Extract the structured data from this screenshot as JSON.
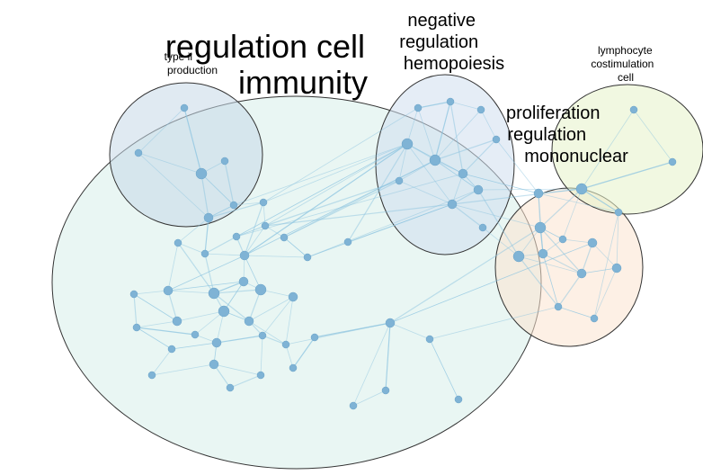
{
  "clusters": [
    {
      "id": "immunity",
      "label_lines": [
        "regulation cell",
        "immunity"
      ],
      "fill": "#d7efe9"
    },
    {
      "id": "type-ii",
      "label_lines": [
        "type ii",
        "production"
      ],
      "fill": "#c7d8e8"
    },
    {
      "id": "hemopoiesis",
      "label_lines": [
        "negative",
        "regulation",
        "hemopoiesis"
      ],
      "fill": "#cfdeee"
    },
    {
      "id": "lymphocyte",
      "label_lines": [
        "lymphocyte",
        "costimulation",
        "cell"
      ],
      "fill": "#e6f2c9"
    },
    {
      "id": "mononuclear",
      "label_lines": [
        "proliferation",
        "regulation",
        "mononuclear"
      ],
      "fill": "#fbe3cf"
    }
  ],
  "colors": {
    "node": "#7fb3d5",
    "node_stroke": "#6aa3c8",
    "edge": "#8cc4e0",
    "cluster_stroke": "#333333"
  }
}
